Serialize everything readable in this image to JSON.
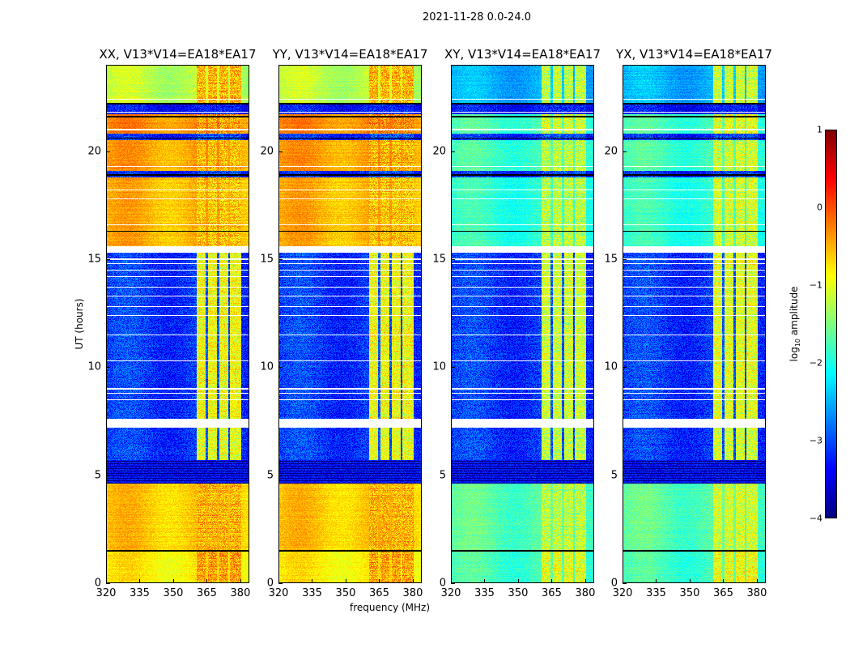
{
  "chart_data": {
    "type": "heatmap",
    "title": "2021-11-28 0.0-24.0",
    "xlabel": "frequency (MHz)",
    "ylabel": "UT (hours)",
    "xlim": [
      320,
      384
    ],
    "ylim": [
      0,
      24
    ],
    "xticks": [
      "320",
      "335",
      "350",
      "365",
      "380"
    ],
    "xtick_values": [
      320,
      335,
      350,
      365,
      380
    ],
    "yticks": [
      "0",
      "5",
      "10",
      "15",
      "20"
    ],
    "ytick_values": [
      0,
      5,
      10,
      15,
      20
    ],
    "colorbar": {
      "label": "log10 amplitude",
      "label_main": "log",
      "label_sub": "10",
      "label_rest": " amplitude",
      "range": [
        -4,
        1
      ],
      "ticks": [
        "1",
        "0",
        "−1",
        "−2",
        "−3",
        "−4"
      ],
      "tick_values": [
        1,
        0,
        -1,
        -2,
        -3,
        -4
      ],
      "colormap": "jet"
    },
    "rfi_channels_mhz": [
      [
        360.5,
        364.5
      ],
      [
        365.5,
        369.5
      ],
      [
        370.5,
        374.5
      ],
      [
        375.5,
        380.5
      ]
    ],
    "flagged_times_hours": [
      7.3,
      7.4,
      8.5,
      8.8,
      9.0,
      10.3,
      11.5,
      12.4,
      12.8,
      13.3,
      13.7,
      14.2,
      14.5,
      14.8,
      15.0,
      15.4,
      15.5,
      16.6,
      17.8,
      18.2,
      19.3,
      21.0,
      21.8,
      22.4
    ],
    "black_times_hours": [
      1.5,
      16.3,
      18.9,
      20.6,
      21.6,
      22.2
    ],
    "panels": [
      {
        "title": "XX, V13*V14=EA18*EA17",
        "segments": [
          [
            0,
            1.5,
            -0.8,
            -0.4
          ],
          [
            1.5,
            4.6,
            -0.6,
            -0.5
          ],
          [
            4.6,
            5.7,
            -4.5,
            -4.5
          ],
          [
            5.7,
            7.2,
            -3.1,
            -1.0
          ],
          [
            7.2,
            7.6,
            null,
            null
          ],
          [
            7.6,
            15.3,
            -3.1,
            -0.9
          ],
          [
            15.3,
            15.6,
            null,
            null
          ],
          [
            15.6,
            18.8,
            -0.5,
            -0.6
          ],
          [
            18.8,
            19.1,
            -3.2,
            -3.0
          ],
          [
            19.1,
            20.5,
            -0.4,
            -0.5
          ],
          [
            20.5,
            20.8,
            -3.2,
            -3.0
          ],
          [
            20.8,
            21.7,
            -0.3,
            -0.4
          ],
          [
            21.7,
            22.2,
            -3.3,
            -3.2
          ],
          [
            22.2,
            24,
            -1.2,
            -0.5
          ]
        ]
      },
      {
        "title": "YY, V13*V14=EA18*EA17",
        "segments": [
          [
            0,
            1.5,
            -0.8,
            -0.4
          ],
          [
            1.5,
            4.6,
            -0.6,
            -0.5
          ],
          [
            4.6,
            5.7,
            -4.5,
            -4.5
          ],
          [
            5.7,
            7.2,
            -3.1,
            -1.0
          ],
          [
            7.2,
            7.6,
            null,
            null
          ],
          [
            7.6,
            15.3,
            -3.1,
            -0.9
          ],
          [
            15.3,
            15.6,
            null,
            null
          ],
          [
            15.6,
            18.8,
            -0.5,
            -0.6
          ],
          [
            18.8,
            19.1,
            -3.2,
            -3.0
          ],
          [
            19.1,
            20.5,
            -0.4,
            -0.5
          ],
          [
            20.5,
            20.8,
            -3.2,
            -3.0
          ],
          [
            20.8,
            21.7,
            -0.3,
            -0.3
          ],
          [
            21.7,
            22.2,
            -3.3,
            -3.2
          ],
          [
            22.2,
            24,
            -1.2,
            -0.5
          ]
        ]
      },
      {
        "title": "XY, V13*V14=EA18*EA17",
        "segments": [
          [
            0,
            1.5,
            -1.8,
            -1.0
          ],
          [
            1.5,
            4.6,
            -1.7,
            -1.2
          ],
          [
            4.6,
            5.7,
            -4.5,
            -4.5
          ],
          [
            5.7,
            7.2,
            -3.1,
            -1.2
          ],
          [
            7.2,
            7.6,
            null,
            null
          ],
          [
            7.6,
            15.3,
            -3.1,
            -1.1
          ],
          [
            15.3,
            15.6,
            null,
            null
          ],
          [
            15.6,
            18.8,
            -1.9,
            -1.2
          ],
          [
            18.8,
            19.1,
            -3.2,
            -3.0
          ],
          [
            19.1,
            20.5,
            -1.8,
            -1.2
          ],
          [
            20.5,
            20.8,
            -3.2,
            -3.0
          ],
          [
            20.8,
            21.7,
            -1.8,
            -1.1
          ],
          [
            21.7,
            22.2,
            -3.3,
            -3.2
          ],
          [
            22.2,
            24,
            -2.5,
            -1.2
          ]
        ]
      },
      {
        "title": "YX, V13*V14=EA18*EA17",
        "segments": [
          [
            0,
            1.5,
            -1.8,
            -0.9
          ],
          [
            1.5,
            4.6,
            -1.7,
            -1.1
          ],
          [
            4.6,
            5.7,
            -4.5,
            -4.5
          ],
          [
            5.7,
            7.2,
            -3.1,
            -1.1
          ],
          [
            7.2,
            7.6,
            null,
            null
          ],
          [
            7.6,
            15.3,
            -3.1,
            -1.0
          ],
          [
            15.3,
            15.6,
            null,
            null
          ],
          [
            15.6,
            18.8,
            -1.9,
            -1.1
          ],
          [
            18.8,
            19.1,
            -3.2,
            -3.0
          ],
          [
            19.1,
            20.5,
            -1.8,
            -1.1
          ],
          [
            20.5,
            20.8,
            -3.2,
            -3.0
          ],
          [
            20.8,
            21.7,
            -1.8,
            -1.0
          ],
          [
            21.7,
            22.2,
            -3.3,
            -3.2
          ],
          [
            22.2,
            24,
            -2.5,
            -1.1
          ]
        ]
      }
    ]
  }
}
